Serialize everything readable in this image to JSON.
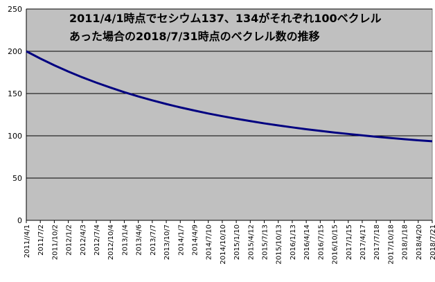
{
  "chart_data": {
    "type": "line",
    "title": [
      "2011/4/1時点でセシウム137、134がそれぞれ100ベクレル",
      "あった場合の2018/7/31時点のベクレル数の推移"
    ],
    "categories": [
      "2011//4/1",
      "2011/7/2",
      "2011/10/2",
      "2012/1/2",
      "2012/4/3",
      "2012/7/4",
      "2012/10/4",
      "2013/1/4",
      "2013/4/6",
      "2013/7/7",
      "2013/10/7",
      "2014/1/7",
      "2014/4/9",
      "2014/7/10",
      "2014/10/10",
      "2015/1/10",
      "2015/4/12",
      "2015/7/13",
      "2015/10/13",
      "2016/1/13",
      "2016/4/14",
      "2016/7/15",
      "2016/10/15",
      "2017/1/15",
      "2017/4/17",
      "2017/7/18",
      "2017/10/18",
      "2018/1/18",
      "2018/4/20",
      "2018/7/21"
    ],
    "values": [
      200,
      191.4,
      183.4,
      176.0,
      169.2,
      162.9,
      157.1,
      151.6,
      146.6,
      142.0,
      137.6,
      133.6,
      129.9,
      126.4,
      123.2,
      120.2,
      117.4,
      114.7,
      112.3,
      110.0,
      107.8,
      105.8,
      103.9,
      102.2,
      100.5,
      98.9,
      97.4,
      96.0,
      94.7,
      93.5
    ],
    "color": "#000080",
    "ylim": [
      0,
      250
    ],
    "yticks": [
      0,
      50,
      100,
      150,
      200,
      250
    ],
    "grid": true
  }
}
